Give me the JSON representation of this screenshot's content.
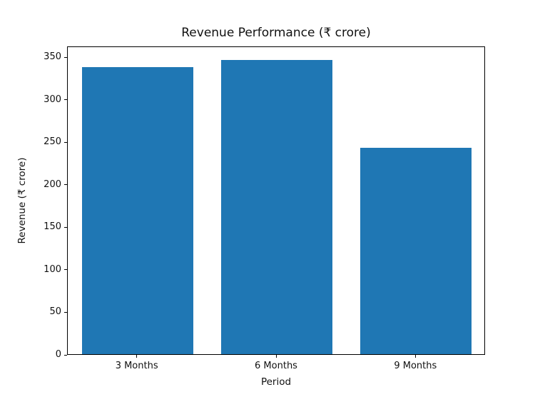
{
  "chart_data": {
    "type": "bar",
    "title": "Revenue Performance (₹ crore)",
    "xlabel": "Period",
    "ylabel": "Revenue (₹ crore)",
    "categories": [
      "3 Months",
      "6 Months",
      "9 Months"
    ],
    "values": [
      338,
      346,
      243
    ],
    "yticks": [
      0,
      50,
      100,
      150,
      200,
      250,
      300,
      350
    ],
    "ylim": [
      0,
      363
    ],
    "bar_color": "#1f77b4",
    "grid": false,
    "legend": "none",
    "background": "#ffffff"
  }
}
